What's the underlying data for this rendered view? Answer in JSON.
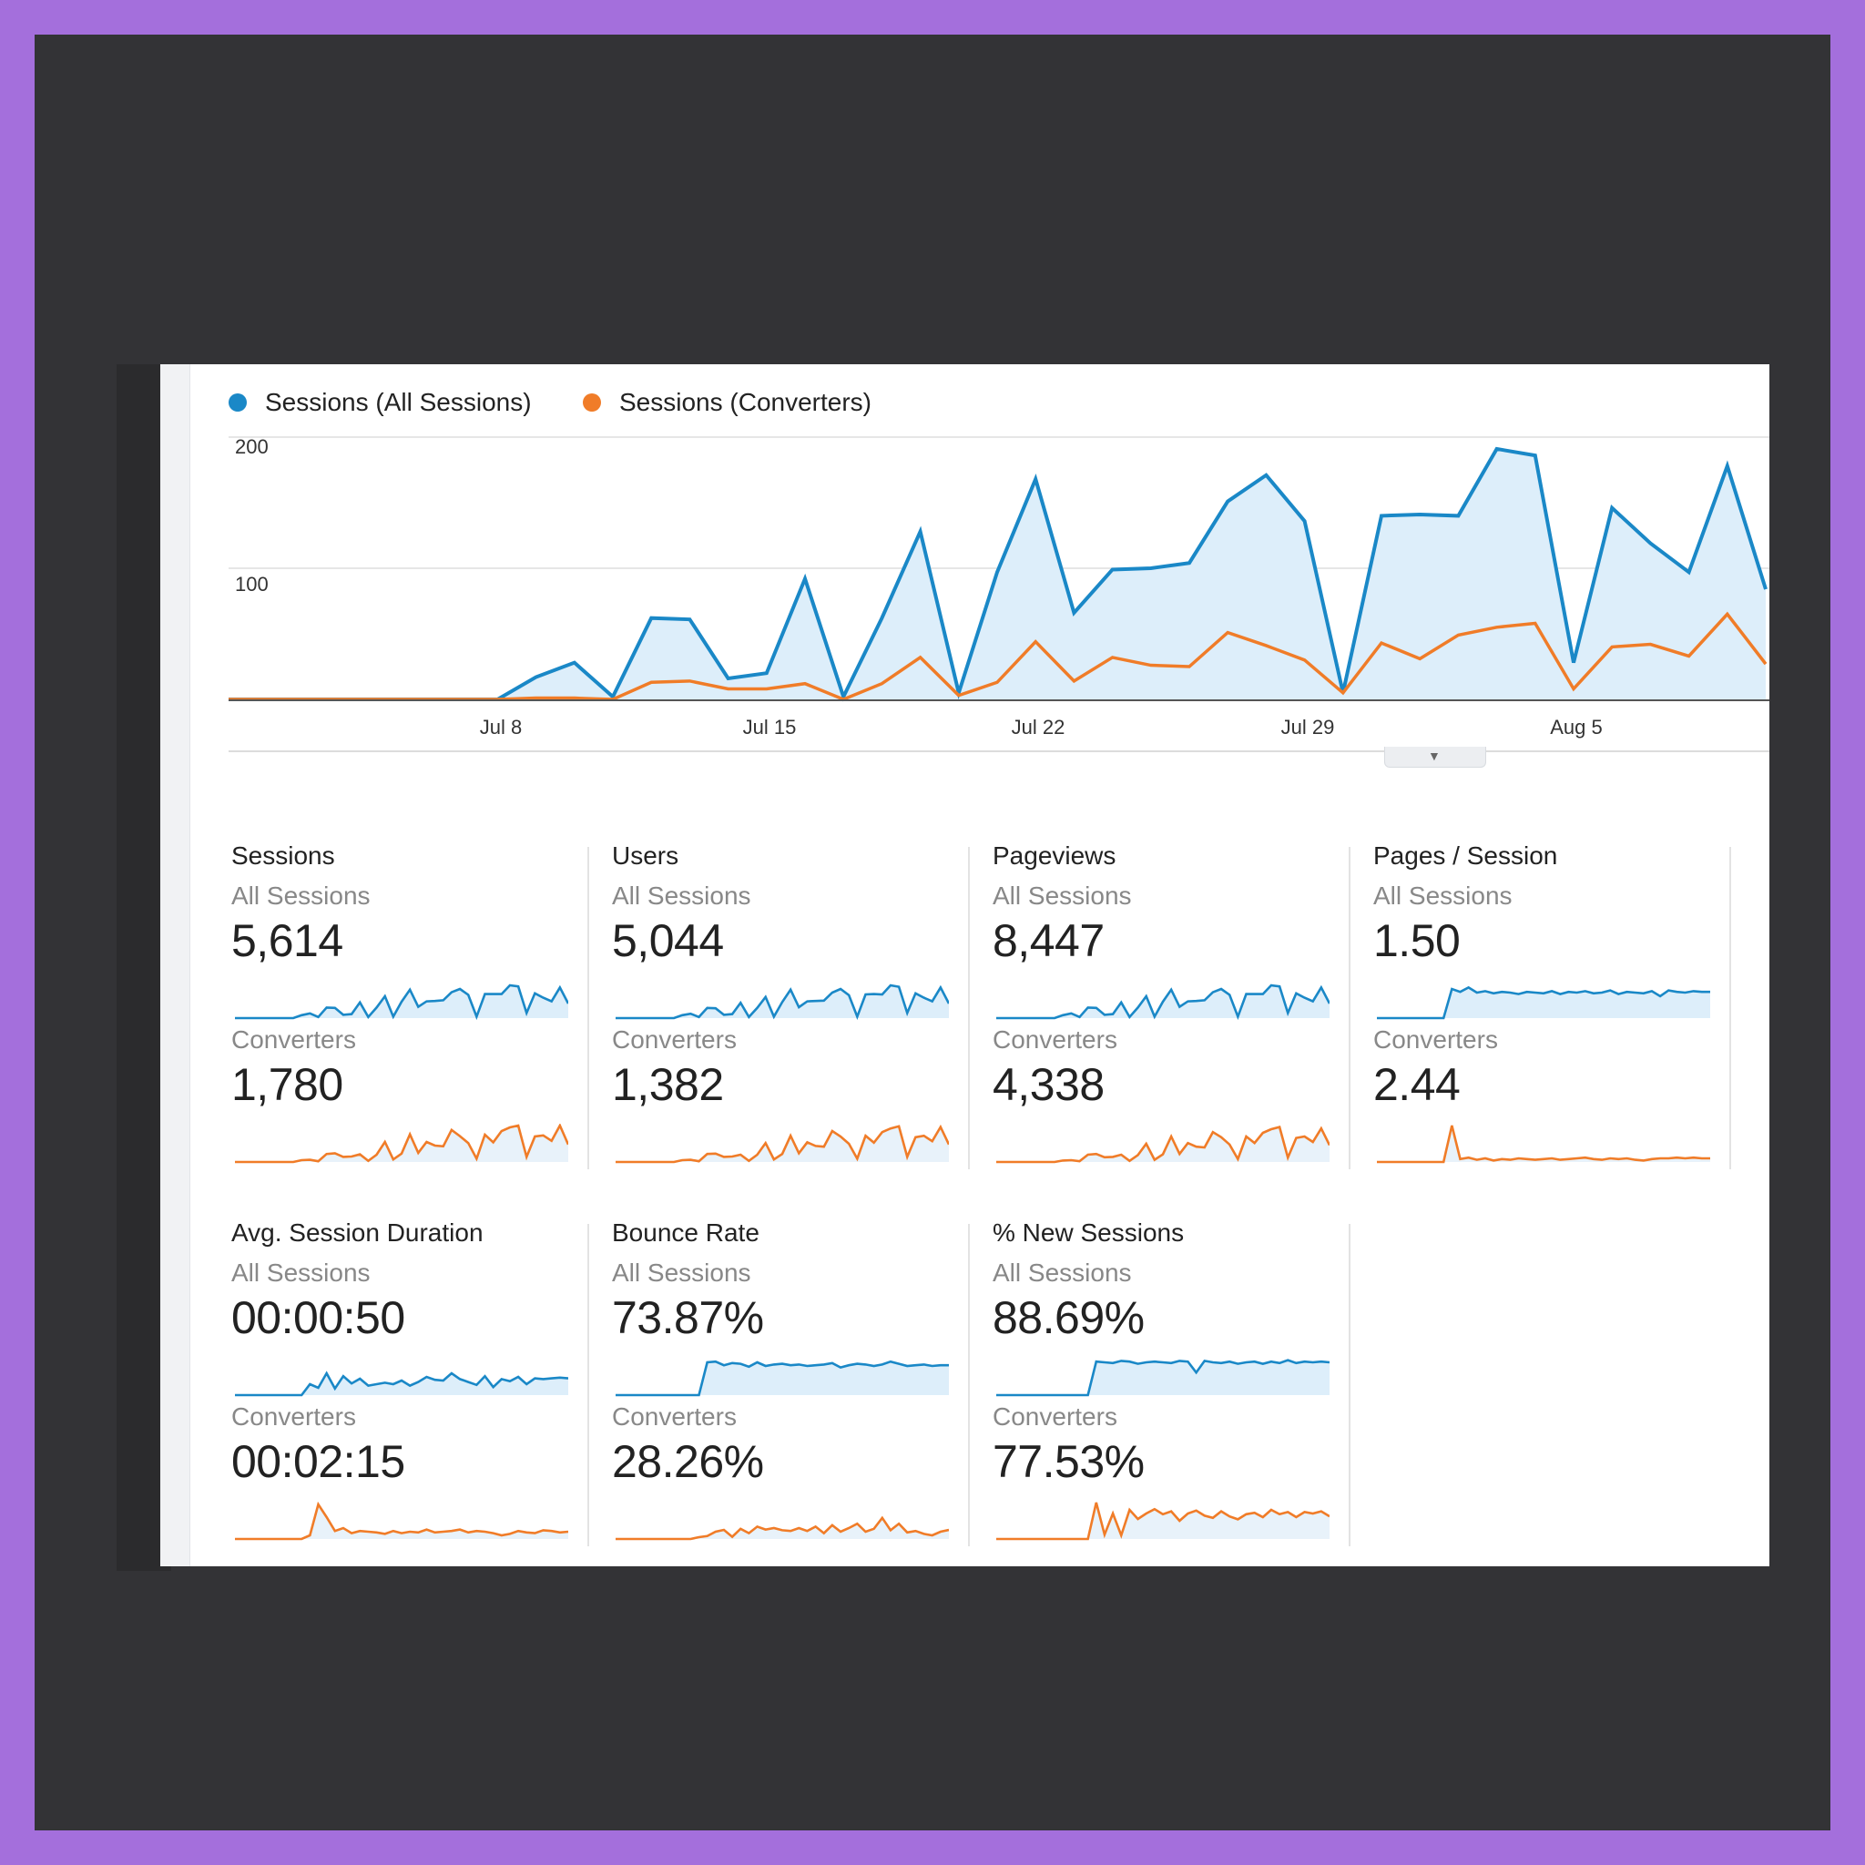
{
  "legend": {
    "all_label": "Sessions (All Sessions)",
    "conv_label": "Sessions (Converters)"
  },
  "colors": {
    "all": "#1a88c7",
    "all_fill": "#ddeefa",
    "converters": "#f07c28",
    "converters_fill": "#e8f2fa",
    "grid": "#e6e6e6",
    "axis": "#999999"
  },
  "chart_data": {
    "type": "area",
    "yticks": [
      "200",
      "100"
    ],
    "ylim": [
      0,
      200
    ],
    "xtick_labels": [
      "Jul 8",
      "Jul 15",
      "Jul 22",
      "Jul 29",
      "Aug 5"
    ],
    "x_start": "Jul 1",
    "x_end": "Aug 10",
    "series": [
      {
        "name": "Sessions (All Sessions)",
        "values": [
          0,
          0,
          0,
          0,
          0,
          0,
          0,
          0,
          17,
          28,
          2,
          62,
          61,
          16,
          20,
          92,
          2,
          62,
          128,
          5,
          97,
          168,
          66,
          99,
          100,
          104,
          151,
          171,
          136,
          5,
          140,
          141,
          140,
          191,
          186,
          28,
          146,
          119,
          97,
          178,
          84
        ]
      },
      {
        "name": "Sessions (Converters)",
        "values": [
          0,
          0,
          0,
          0,
          0,
          0,
          0,
          0,
          1,
          1,
          0,
          13,
          14,
          8,
          8,
          12,
          0,
          12,
          32,
          3,
          13,
          44,
          14,
          32,
          26,
          25,
          51,
          41,
          30,
          5,
          43,
          31,
          49,
          55,
          58,
          8,
          40,
          42,
          33,
          65,
          27
        ]
      }
    ]
  },
  "cards": [
    {
      "title": "Sessions",
      "seg1": "All Sessions",
      "val1": "5,614",
      "seg2": "Converters",
      "val2": "1,780"
    },
    {
      "title": "Users",
      "seg1": "All Sessions",
      "val1": "5,044",
      "seg2": "Converters",
      "val2": "1,382"
    },
    {
      "title": "Pageviews",
      "seg1": "All Sessions",
      "val1": "8,447",
      "seg2": "Converters",
      "val2": "4,338"
    },
    {
      "title": "Pages / Session",
      "seg1": "All Sessions",
      "val1": "1.50",
      "seg2": "Converters",
      "val2": "2.44"
    },
    {
      "title": "Avg. Session Duration",
      "seg1": "All Sessions",
      "val1": "00:00:50",
      "seg2": "Converters",
      "val2": "00:02:15"
    },
    {
      "title": "Bounce Rate",
      "seg1": "All Sessions",
      "val1": "73.87%",
      "seg2": "Converters",
      "val2": "28.26%"
    },
    {
      "title": "% New Sessions",
      "seg1": "All Sessions",
      "val1": "88.69%",
      "seg2": "Converters",
      "val2": "77.53%"
    }
  ],
  "sparklines": {
    "sessions_all": [
      0,
      0,
      0,
      0,
      0,
      0,
      0,
      0,
      8,
      13,
      3,
      29,
      28,
      9,
      11,
      43,
      3,
      29,
      60,
      4,
      45,
      78,
      31,
      46,
      47,
      49,
      71,
      80,
      64,
      4,
      66,
      66,
      66,
      90,
      87,
      14,
      68,
      56,
      46,
      84,
      40
    ],
    "sessions_conv": [
      0,
      0,
      0,
      0,
      0,
      0,
      0,
      0,
      5,
      6,
      2,
      22,
      24,
      14,
      15,
      21,
      3,
      20,
      55,
      7,
      23,
      76,
      25,
      55,
      45,
      43,
      88,
      71,
      52,
      9,
      75,
      54,
      85,
      95,
      100,
      14,
      70,
      73,
      58,
      100,
      48
    ],
    "users_all": [
      0,
      0,
      0,
      0,
      0,
      0,
      0,
      0,
      8,
      12,
      3,
      28,
      27,
      9,
      11,
      42,
      3,
      28,
      58,
      4,
      44,
      78,
      30,
      46,
      47,
      48,
      70,
      80,
      63,
      4,
      65,
      66,
      65,
      90,
      86,
      14,
      68,
      56,
      46,
      84,
      40
    ],
    "users_conv": [
      0,
      0,
      0,
      0,
      0,
      0,
      0,
      0,
      5,
      6,
      2,
      22,
      23,
      14,
      15,
      20,
      3,
      20,
      52,
      7,
      22,
      72,
      24,
      54,
      44,
      42,
      85,
      70,
      50,
      9,
      72,
      53,
      82,
      92,
      98,
      14,
      68,
      72,
      57,
      96,
      48
    ],
    "pv_all": [
      0,
      0,
      0,
      0,
      0,
      0,
      0,
      0,
      8,
      13,
      3,
      29,
      28,
      9,
      11,
      43,
      3,
      29,
      60,
      4,
      45,
      78,
      31,
      46,
      47,
      49,
      71,
      80,
      64,
      4,
      66,
      66,
      66,
      90,
      87,
      14,
      68,
      56,
      46,
      84,
      40
    ],
    "pv_conv": [
      0,
      0,
      0,
      0,
      0,
      0,
      0,
      0,
      4,
      5,
      2,
      20,
      22,
      13,
      14,
      20,
      3,
      19,
      50,
      6,
      21,
      70,
      22,
      52,
      42,
      40,
      82,
      68,
      48,
      8,
      70,
      52,
      80,
      90,
      96,
      12,
      66,
      70,
      55,
      92,
      46
    ],
    "pps_all": [
      0,
      0,
      0,
      0,
      0,
      0,
      0,
      0,
      0,
      80,
      72,
      84,
      70,
      74,
      68,
      72,
      70,
      66,
      72,
      70,
      68,
      74,
      66,
      72,
      70,
      74,
      68,
      70,
      76,
      66,
      72,
      70,
      68,
      74,
      60,
      76,
      72,
      70,
      74,
      72,
      72
    ],
    "pps_conv": [
      0,
      0,
      0,
      0,
      0,
      0,
      0,
      0,
      0,
      100,
      8,
      12,
      6,
      10,
      4,
      8,
      6,
      10,
      8,
      6,
      8,
      10,
      6,
      8,
      10,
      12,
      8,
      6,
      10,
      8,
      10,
      6,
      4,
      8,
      10,
      10,
      12,
      10,
      12,
      10,
      10
    ],
    "asd_all": [
      0,
      0,
      0,
      0,
      0,
      0,
      0,
      0,
      0,
      30,
      20,
      60,
      18,
      52,
      32,
      45,
      26,
      30,
      34,
      30,
      40,
      26,
      36,
      50,
      42,
      40,
      60,
      44,
      36,
      28,
      52,
      22,
      44,
      38,
      50,
      30,
      46,
      44,
      46,
      48,
      46
    ],
    "asd_conv": [
      0,
      0,
      0,
      0,
      0,
      0,
      0,
      0,
      0,
      10,
      95,
      60,
      22,
      30,
      16,
      22,
      20,
      18,
      14,
      22,
      16,
      20,
      18,
      26,
      18,
      20,
      22,
      26,
      18,
      22,
      20,
      16,
      10,
      14,
      22,
      18,
      16,
      24,
      22,
      18,
      20
    ],
    "br_all": [
      0,
      0,
      0,
      0,
      0,
      0,
      0,
      0,
      0,
      0,
      0,
      90,
      92,
      82,
      88,
      86,
      78,
      90,
      80,
      84,
      86,
      82,
      84,
      80,
      82,
      84,
      88,
      76,
      82,
      86,
      84,
      80,
      84,
      92,
      86,
      80,
      82,
      84,
      80,
      82,
      82
    ],
    "br_conv": [
      0,
      0,
      0,
      0,
      0,
      0,
      0,
      0,
      0,
      0,
      5,
      8,
      20,
      25,
      6,
      28,
      16,
      34,
      26,
      30,
      24,
      22,
      30,
      22,
      34,
      16,
      38,
      20,
      30,
      42,
      20,
      28,
      58,
      24,
      42,
      18,
      22,
      14,
      10,
      20,
      25
    ],
    "ns_all": [
      0,
      0,
      0,
      0,
      0,
      0,
      0,
      0,
      0,
      0,
      0,
      0,
      92,
      90,
      88,
      94,
      92,
      86,
      90,
      92,
      90,
      88,
      94,
      92,
      62,
      94,
      90,
      88,
      92,
      86,
      90,
      92,
      86,
      92,
      88,
      96,
      88,
      92,
      90,
      92,
      90
    ],
    "ns_conv": [
      0,
      0,
      0,
      0,
      0,
      0,
      0,
      0,
      0,
      0,
      0,
      0,
      100,
      12,
      70,
      10,
      80,
      55,
      70,
      82,
      68,
      76,
      50,
      70,
      78,
      64,
      58,
      76,
      62,
      54,
      68,
      72,
      60,
      80,
      68,
      74,
      60,
      74,
      70,
      76,
      62
    ]
  }
}
